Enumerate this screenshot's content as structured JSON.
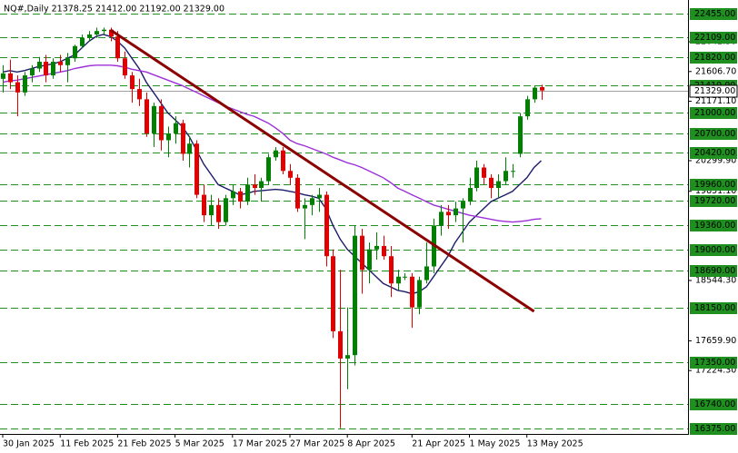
{
  "chart_data": {
    "type": "candlestick",
    "title": "NQ#,Daily  21378.25 21412.00 21192.00 21329.00",
    "categories": [
      "30 Jan 2025",
      null,
      null,
      null,
      null,
      null,
      null,
      null,
      "11 Feb 2025",
      null,
      null,
      null,
      null,
      null,
      null,
      null,
      "21 Feb 2025",
      null,
      null,
      null,
      null,
      null,
      null,
      null,
      "5 Mar 2025",
      null,
      null,
      null,
      null,
      null,
      null,
      null,
      "17 Mar 2025",
      null,
      null,
      null,
      null,
      null,
      null,
      null,
      "27 Mar 2025",
      null,
      null,
      null,
      null,
      null,
      null,
      null,
      "8 Apr 2025",
      null,
      null,
      null,
      null,
      null,
      null,
      null,
      null,
      "21 Apr 2025",
      null,
      null,
      null,
      null,
      null,
      null,
      null,
      "1 May 2025",
      null,
      null,
      null,
      null,
      null,
      null,
      null,
      "13 May 2025",
      null,
      null
    ],
    "open": [
      21500,
      21580,
      21450,
      21300,
      21550,
      21650,
      21750,
      21550,
      21750,
      21700,
      21800,
      21980,
      22100,
      22150,
      22200,
      22220,
      22120,
      21800,
      21550,
      21350,
      21200,
      20700,
      21100,
      20600,
      20700,
      20850,
      20400,
      20550,
      19800,
      19500,
      19650,
      19400,
      19750,
      19850,
      19700,
      19950,
      19900,
      20000,
      20350,
      20450,
      20150,
      20050,
      19600,
      19650,
      19750,
      19800,
      18900,
      17800,
      17400,
      17450,
      19200,
      18700,
      19000,
      19050,
      18900,
      18500,
      18600,
      18600,
      18150,
      18550,
      18750,
      19350,
      19550,
      19500,
      19600,
      19700,
      19900,
      20200,
      20050,
      19900,
      20000,
      20150,
      20400,
      20950,
      21200,
      21378.25
    ],
    "high": [
      21700,
      21780,
      21550,
      21600,
      21700,
      21820,
      21850,
      21800,
      21850,
      21880,
      22000,
      22150,
      22200,
      22250,
      22250,
      22250,
      22200,
      21900,
      21600,
      21500,
      21300,
      21150,
      21200,
      20800,
      20950,
      20900,
      20650,
      20600,
      19950,
      19800,
      19750,
      19800,
      19950,
      19900,
      20050,
      20100,
      20050,
      20400,
      20500,
      20500,
      20250,
      20100,
      19750,
      19800,
      19900,
      19850,
      19000,
      18700,
      18150,
      19350,
      19300,
      19100,
      19250,
      19200,
      19050,
      18700,
      18650,
      18650,
      18600,
      19100,
      19450,
      19650,
      19650,
      19700,
      19750,
      20050,
      20300,
      20250,
      20100,
      20100,
      20350,
      20250,
      21000,
      21250,
      21400,
      21412
    ],
    "low": [
      21300,
      21350,
      20950,
      21250,
      21450,
      21600,
      21450,
      21500,
      21600,
      21450,
      21750,
      21950,
      22050,
      22100,
      22150,
      22050,
      21750,
      21500,
      21150,
      21100,
      20650,
      20500,
      20450,
      20350,
      20550,
      20300,
      20200,
      19750,
      19400,
      19350,
      19300,
      19350,
      19650,
      19600,
      19650,
      19800,
      19700,
      19950,
      20300,
      20100,
      19950,
      19550,
      19150,
      19500,
      19550,
      18750,
      17700,
      16380,
      16950,
      17300,
      18350,
      18500,
      18850,
      18850,
      18300,
      18400,
      18550,
      17850,
      18050,
      18500,
      18650,
      19200,
      19300,
      19400,
      19100,
      19650,
      19850,
      19950,
      19750,
      19750,
      19950,
      20050,
      20350,
      20900,
      21150,
      21192
    ],
    "close": [
      21580,
      21450,
      21300,
      21550,
      21650,
      21750,
      21550,
      21750,
      21700,
      21800,
      21980,
      22100,
      22150,
      22200,
      22220,
      22120,
      21800,
      21550,
      21350,
      21200,
      20700,
      21100,
      20600,
      20700,
      20850,
      20400,
      20550,
      19800,
      19500,
      19650,
      19400,
      19750,
      19850,
      19700,
      19950,
      19900,
      20000,
      20350,
      20450,
      20150,
      20050,
      19600,
      19650,
      19750,
      19800,
      18900,
      17800,
      17400,
      17450,
      19200,
      18700,
      19000,
      19050,
      18900,
      18500,
      18600,
      18600,
      18150,
      18550,
      18750,
      19350,
      19550,
      19500,
      19600,
      19700,
      19900,
      20200,
      20050,
      19900,
      20000,
      20150,
      20150,
      20950,
      21200,
      21370,
      21329
    ],
    "up_color": "#008000",
    "down_color": "#e00000",
    "lines": [
      {
        "color": "#1c1c6b",
        "values": [
          21600,
          21620,
          21600,
          21620,
          21650,
          21680,
          21700,
          21720,
          21750,
          21800,
          21850,
          21950,
          22050,
          22120,
          22150,
          22120,
          22050,
          21950,
          21800,
          21650,
          21450,
          21300,
          21150,
          21000,
          20900,
          20800,
          20650,
          20450,
          20250,
          20100,
          19950,
          19900,
          19850,
          19800,
          19820,
          19850,
          19860,
          19870,
          19880,
          19870,
          19850,
          19830,
          19800,
          19780,
          19750,
          19600,
          19350,
          19150,
          19000,
          18900,
          18800,
          18700,
          18600,
          18500,
          18450,
          18400,
          18380,
          18350,
          18380,
          18450,
          18600,
          18750,
          18900,
          19100,
          19250,
          19400,
          19500,
          19600,
          19700,
          19750,
          19800,
          19850,
          19950,
          20050,
          20200,
          20300
        ]
      },
      {
        "color": "#9b30d9",
        "values": [
          21450,
          21470,
          21480,
          21500,
          21520,
          21540,
          21560,
          21580,
          21600,
          21620,
          21650,
          21670,
          21690,
          21700,
          21700,
          21700,
          21690,
          21670,
          21640,
          21620,
          21600,
          21560,
          21520,
          21480,
          21440,
          21400,
          21350,
          21300,
          21250,
          21200,
          21150,
          21100,
          21060,
          21020,
          20980,
          20950,
          20900,
          20850,
          20780,
          20700,
          20600,
          20550,
          20520,
          20480,
          20440,
          20400,
          20350,
          20310,
          20270,
          20240,
          20200,
          20150,
          20100,
          20050,
          19980,
          19900,
          19850,
          19800,
          19750,
          19700,
          19650,
          19620,
          19590,
          19560,
          19530,
          19500,
          19480,
          19460,
          19440,
          19420,
          19410,
          19400,
          19410,
          19420,
          19440,
          19450
        ]
      }
    ],
    "trendline": {
      "color": "#8b0000",
      "start": [
        15,
        22216
      ],
      "end": [
        74,
        18091
      ]
    },
    "ylim": [
      16295,
      22655
    ],
    "yticks": [
      {
        "value": 22042.5,
        "label": "22042.50"
      },
      {
        "value": 21606.7,
        "label": "21606.70"
      },
      {
        "value": 21171.1,
        "label": "21171.10"
      },
      {
        "value": 20299.9,
        "label": "20299.90"
      },
      {
        "value": 19851.1,
        "label": "19851.10"
      },
      {
        "value": 18544.3,
        "label": "18544.30"
      },
      {
        "value": 17659.9,
        "label": "17659.90"
      },
      {
        "value": 17224.3,
        "label": "17224.30"
      }
    ],
    "levels": [
      {
        "value": 22455,
        "label": "22455.00"
      },
      {
        "value": 22109,
        "label": "22109.00"
      },
      {
        "value": 21820,
        "label": "21820.00"
      },
      {
        "value": 21410,
        "label": "21410.00"
      },
      {
        "value": 21000,
        "label": "21000.00"
      },
      {
        "value": 20700,
        "label": "20700.00"
      },
      {
        "value": 20420,
        "label": "20420.00"
      },
      {
        "value": 19960,
        "label": "19960.00"
      },
      {
        "value": 19720,
        "label": "19720.00"
      },
      {
        "value": 19360,
        "label": "19360.00"
      },
      {
        "value": 19000,
        "label": "19000.00"
      },
      {
        "value": 18690,
        "label": "18690.00"
      },
      {
        "value": 18150,
        "label": "18150.00"
      },
      {
        "value": 17350,
        "label": "17350.00"
      },
      {
        "value": 16740,
        "label": "16740.00"
      },
      {
        "value": 16375,
        "label": "16375.00"
      }
    ],
    "level_color": "#1f8f1f",
    "price": {
      "value": 21329,
      "label": "21329.00"
    }
  }
}
